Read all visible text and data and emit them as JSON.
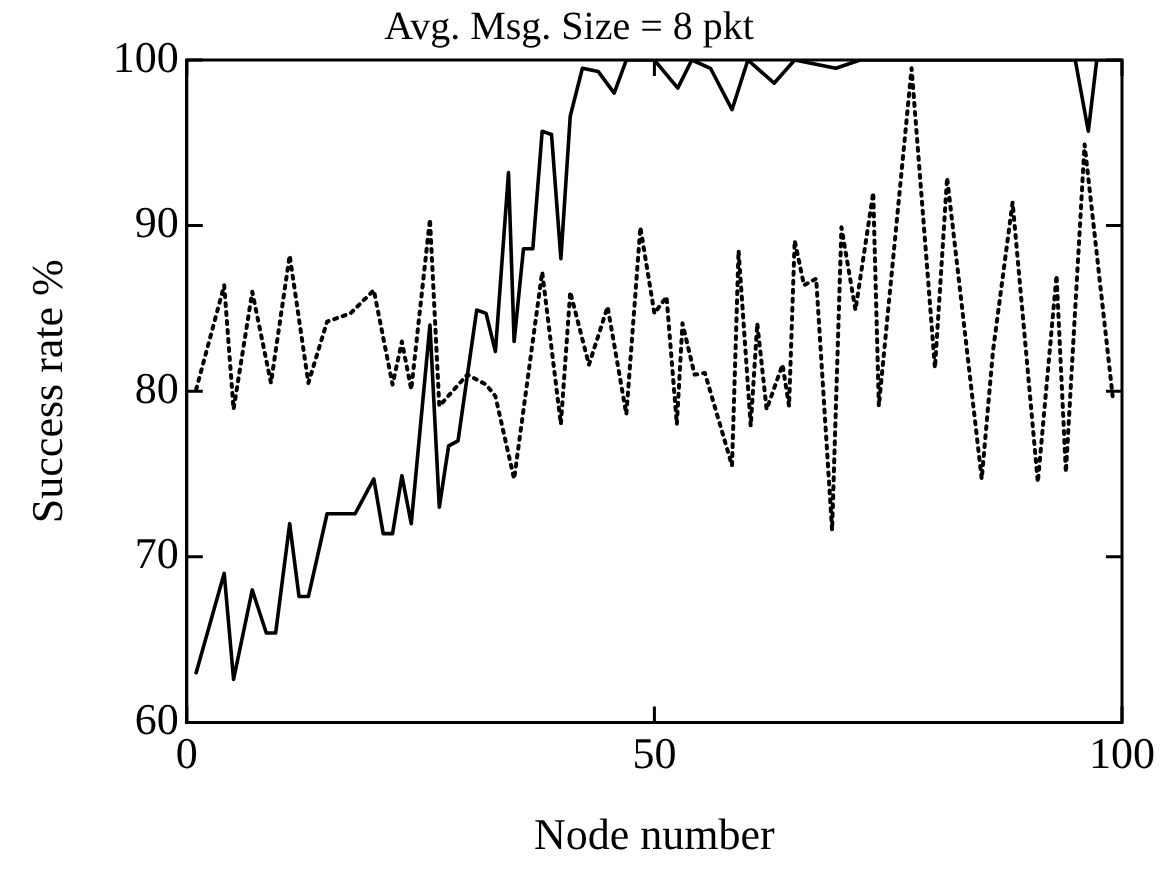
{
  "chart_data": {
    "type": "line",
    "title": "Avg. Msg. Size = 8 pkt",
    "xlabel": "Node number",
    "ylabel": "Success rate %",
    "xlim": [
      0,
      100
    ],
    "xticks": [
      0,
      50,
      100
    ],
    "ylim": [
      60,
      100
    ],
    "yticks": [
      60,
      70,
      80,
      90,
      100
    ],
    "grid": false,
    "legend": false,
    "marker": "none",
    "series": [
      {
        "color": "#000000",
        "line_style": "solid",
        "x": [
          1,
          4,
          5,
          7,
          8.5,
          9.5,
          11,
          12,
          13,
          15,
          18,
          20,
          21,
          22,
          23,
          24,
          26,
          27,
          28,
          29,
          31,
          32,
          33,
          34.4,
          35,
          36,
          37,
          38,
          39,
          40,
          41,
          42.3,
          44,
          45.7,
          47,
          50,
          52.5,
          54,
          56,
          58.3,
          60,
          62.8,
          65,
          69.4,
          72,
          75,
          80,
          85,
          90,
          95,
          96.4,
          97.3,
          100
        ],
        "values": [
          63,
          69,
          62.6,
          68,
          65.4,
          65.4,
          72,
          67.6,
          67.6,
          72.6,
          72.6,
          74.7,
          71.4,
          71.4,
          74.9,
          72,
          84,
          73,
          76.7,
          77,
          84.9,
          84.7,
          82.4,
          93.2,
          83,
          88.6,
          88.6,
          95.7,
          95.5,
          88,
          96.6,
          99.5,
          99.3,
          98,
          100,
          100,
          98.3,
          100,
          99.5,
          97,
          100,
          98.6,
          100,
          99.5,
          100,
          100,
          100,
          100,
          100,
          100,
          95.7,
          100,
          100
        ]
      },
      {
        "color": "#000000",
        "line_style": "dotted",
        "x": [
          1,
          4,
          5,
          7,
          9,
          11,
          13,
          15,
          17.5,
          20,
          22,
          23,
          24,
          26,
          27,
          30,
          32,
          33,
          35,
          38,
          40,
          41,
          43,
          45,
          47,
          48.5,
          50,
          51.3,
          52.4,
          53,
          54.3,
          55.4,
          58.3,
          59,
          60.3,
          61,
          62,
          63.7,
          64.4,
          65,
          66,
          67.3,
          69,
          70,
          71.5,
          73.4,
          74,
          77.5,
          80,
          81.3,
          85,
          86.2,
          88.3,
          91,
          93,
          94,
          96,
          99
        ],
        "values": [
          80.1,
          86.4,
          78.9,
          86,
          80.5,
          88.2,
          80.5,
          84.2,
          84.7,
          86.1,
          80.4,
          83,
          80.1,
          90.4,
          79.1,
          81,
          80.4,
          79.7,
          74.7,
          87.2,
          78,
          86,
          81.6,
          85.1,
          78.6,
          89.9,
          84.7,
          85.7,
          78,
          84.1,
          81,
          81.1,
          75.5,
          88.5,
          77.9,
          84.1,
          78.9,
          81.6,
          79.1,
          89.1,
          86.4,
          86.8,
          71.6,
          89.9,
          84.9,
          92,
          79.1,
          99.5,
          81.4,
          92.9,
          74.7,
          82.4,
          91.4,
          74.5,
          87,
          75.1,
          94.9,
          79.7
        ]
      }
    ]
  }
}
